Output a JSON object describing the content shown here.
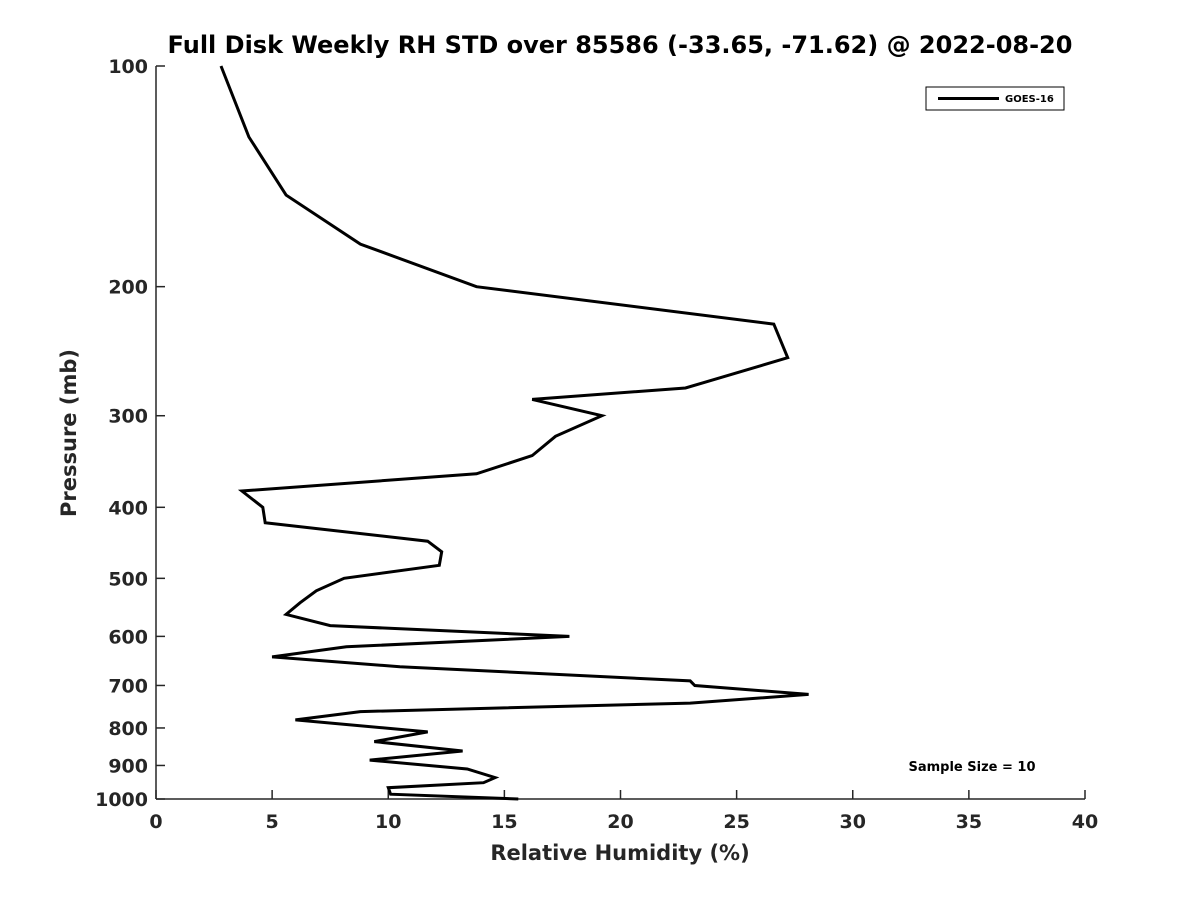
{
  "chart_data": {
    "type": "line",
    "title": "Full Disk Weekly RH STD over 85586 (-33.65, -71.62) @ 2022-08-20",
    "xlabel": "Relative Humidity (%)",
    "ylabel": "Pressure (mb)",
    "xlim": [
      0,
      40
    ],
    "ylim": [
      100,
      1000
    ],
    "yscale": "log",
    "y_reversed": true,
    "grid": false,
    "legend_position": "top-right",
    "line_color": "#000000",
    "xticks": [
      0,
      5,
      10,
      15,
      20,
      25,
      30,
      35,
      40
    ],
    "xtick_labels": [
      "0",
      "5",
      "10",
      "15",
      "20",
      "25",
      "30",
      "35",
      "40"
    ],
    "yticks": [
      100,
      200,
      300,
      400,
      500,
      600,
      700,
      800,
      900,
      1000
    ],
    "ytick_labels": [
      "100",
      "200",
      "300",
      "400",
      "500",
      "600",
      "700",
      "800",
      "900",
      "1000"
    ],
    "series": [
      {
        "name": "GOES-16",
        "points": [
          [
            2.8,
            100
          ],
          [
            4.0,
            125
          ],
          [
            5.6,
            150
          ],
          [
            8.8,
            175
          ],
          [
            13.8,
            200
          ],
          [
            26.6,
            225
          ],
          [
            27.2,
            250
          ],
          [
            22.8,
            275
          ],
          [
            16.2,
            285
          ],
          [
            19.2,
            300
          ],
          [
            17.2,
            320
          ],
          [
            16.2,
            340
          ],
          [
            13.8,
            360
          ],
          [
            3.7,
            380
          ],
          [
            4.6,
            400
          ],
          [
            4.7,
            420
          ],
          [
            11.7,
            445
          ],
          [
            12.3,
            460
          ],
          [
            12.2,
            480
          ],
          [
            8.1,
            500
          ],
          [
            6.9,
            520
          ],
          [
            6.2,
            540
          ],
          [
            5.6,
            560
          ],
          [
            7.5,
            580
          ],
          [
            17.8,
            600
          ],
          [
            8.2,
            620
          ],
          [
            5.0,
            640
          ],
          [
            10.5,
            660
          ],
          [
            23.0,
            690
          ],
          [
            23.2,
            700
          ],
          [
            28.1,
            720
          ],
          [
            23.0,
            740
          ],
          [
            8.8,
            760
          ],
          [
            6.0,
            780
          ],
          [
            11.7,
            810
          ],
          [
            9.4,
            835
          ],
          [
            13.2,
            860
          ],
          [
            9.2,
            885
          ],
          [
            13.4,
            910
          ],
          [
            14.6,
            935
          ],
          [
            14.1,
            950
          ],
          [
            10.0,
            965
          ],
          [
            10.1,
            985
          ],
          [
            15.6,
            1000
          ]
        ]
      }
    ],
    "annotations": [
      "Sample Size = 10"
    ]
  }
}
